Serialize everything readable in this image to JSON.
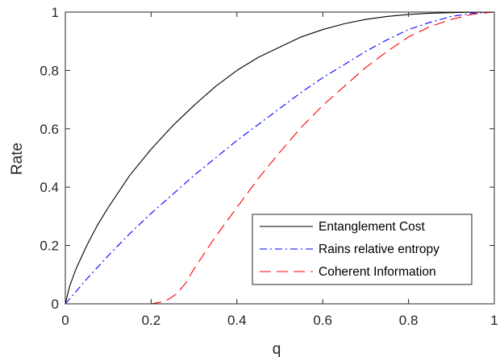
{
  "chart_data": {
    "type": "line",
    "title": "",
    "xlabel": "q",
    "ylabel": "Rate",
    "xlim": [
      0,
      1
    ],
    "ylim": [
      0,
      1
    ],
    "xticks": [
      "0",
      "0.2",
      "0.4",
      "0.6",
      "0.8",
      "1"
    ],
    "yticks": [
      "0",
      "0.2",
      "0.4",
      "0.6",
      "0.8",
      "1"
    ],
    "grid": false,
    "legend_position": "bottom-right",
    "series": [
      {
        "name": "Entanglement Cost",
        "color": "#000000",
        "style": "solid",
        "x": [
          0,
          0.01,
          0.025,
          0.05,
          0.075,
          0.1,
          0.15,
          0.2,
          0.25,
          0.3,
          0.35,
          0.4,
          0.45,
          0.5,
          0.55,
          0.6,
          0.65,
          0.7,
          0.75,
          0.8,
          0.85,
          0.9,
          0.95,
          1
        ],
        "y": [
          0,
          0.06,
          0.12,
          0.2,
          0.27,
          0.33,
          0.44,
          0.53,
          0.61,
          0.68,
          0.745,
          0.8,
          0.845,
          0.88,
          0.915,
          0.94,
          0.96,
          0.975,
          0.985,
          0.992,
          0.996,
          0.998,
          0.9995,
          1
        ]
      },
      {
        "name": "Rains relative entropy",
        "color": "#0000ff",
        "style": "dash-dot",
        "x": [
          0,
          0.05,
          0.1,
          0.15,
          0.2,
          0.25,
          0.3,
          0.35,
          0.4,
          0.45,
          0.5,
          0.55,
          0.6,
          0.65,
          0.7,
          0.75,
          0.8,
          0.85,
          0.9,
          0.95,
          1
        ],
        "y": [
          0,
          0.085,
          0.165,
          0.24,
          0.31,
          0.375,
          0.44,
          0.5,
          0.56,
          0.615,
          0.67,
          0.725,
          0.775,
          0.82,
          0.865,
          0.905,
          0.94,
          0.965,
          0.985,
          0.996,
          1
        ]
      },
      {
        "name": "Coherent Information",
        "color": "#ff0000",
        "style": "dashed",
        "x": [
          0,
          0.1,
          0.2,
          0.22,
          0.24,
          0.26,
          0.28,
          0.3,
          0.35,
          0.4,
          0.45,
          0.5,
          0.55,
          0.6,
          0.65,
          0.7,
          0.75,
          0.8,
          0.85,
          0.9,
          0.95,
          1
        ],
        "y": [
          0,
          0,
          0,
          0.005,
          0.015,
          0.035,
          0.07,
          0.12,
          0.23,
          0.33,
          0.43,
          0.52,
          0.605,
          0.68,
          0.745,
          0.81,
          0.865,
          0.915,
          0.95,
          0.975,
          0.993,
          1
        ]
      }
    ]
  }
}
